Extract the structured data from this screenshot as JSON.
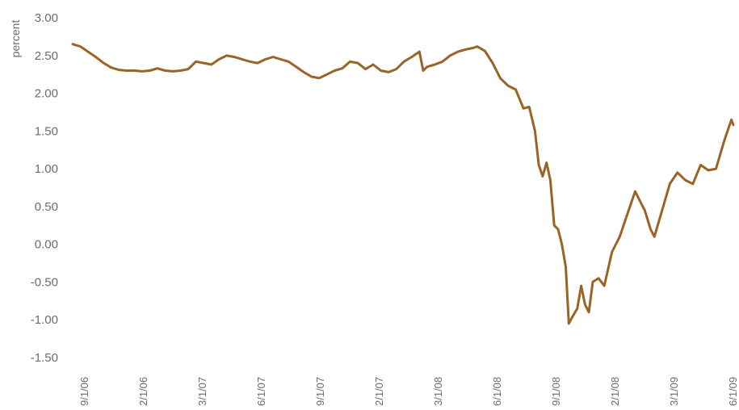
{
  "chart_data": {
    "type": "line",
    "title": "",
    "xlabel": "",
    "ylabel": "percent",
    "ylim": [
      -1.5,
      3.0
    ],
    "yticks": [
      "3.00",
      "2.50",
      "2.00",
      "1.50",
      "1.00",
      "0.50",
      "0.00",
      "-0.50",
      "-1.00",
      "-1.50"
    ],
    "xticks": [
      "9/1/06",
      "2/1/06",
      "3/1/07",
      "6/1/07",
      "9/1/07",
      "2/1/07",
      "3/1/08",
      "6/1/08",
      "9/1/08",
      "2/1/08",
      "3/1/09",
      "6/1/09"
    ],
    "grid": false,
    "legend": "none",
    "series": [
      {
        "color": "#9a6426",
        "points": [
          [
            0.0,
            2.65
          ],
          [
            0.2,
            2.62
          ],
          [
            0.4,
            2.55
          ],
          [
            0.6,
            2.48
          ],
          [
            0.8,
            2.4
          ],
          [
            1.0,
            2.34
          ],
          [
            1.2,
            2.31
          ],
          [
            1.4,
            2.3
          ],
          [
            1.6,
            2.3
          ],
          [
            1.8,
            2.29
          ],
          [
            2.0,
            2.3
          ],
          [
            2.2,
            2.33
          ],
          [
            2.4,
            2.3
          ],
          [
            2.6,
            2.29
          ],
          [
            2.8,
            2.3
          ],
          [
            3.0,
            2.32
          ],
          [
            3.2,
            2.42
          ],
          [
            3.4,
            2.4
          ],
          [
            3.6,
            2.38
          ],
          [
            3.8,
            2.45
          ],
          [
            4.0,
            2.5
          ],
          [
            4.2,
            2.48
          ],
          [
            4.4,
            2.45
          ],
          [
            4.6,
            2.42
          ],
          [
            4.8,
            2.4
          ],
          [
            5.0,
            2.45
          ],
          [
            5.2,
            2.48
          ],
          [
            5.4,
            2.45
          ],
          [
            5.6,
            2.42
          ],
          [
            5.8,
            2.35
          ],
          [
            6.0,
            2.28
          ],
          [
            6.2,
            2.22
          ],
          [
            6.4,
            2.2
          ],
          [
            6.6,
            2.25
          ],
          [
            6.8,
            2.3
          ],
          [
            7.0,
            2.33
          ],
          [
            7.2,
            2.42
          ],
          [
            7.4,
            2.4
          ],
          [
            7.6,
            2.32
          ],
          [
            7.8,
            2.38
          ],
          [
            8.0,
            2.3
          ],
          [
            8.2,
            2.28
          ],
          [
            8.4,
            2.32
          ],
          [
            8.6,
            2.42
          ],
          [
            8.8,
            2.48
          ],
          [
            9.0,
            2.55
          ],
          [
            9.1,
            2.3
          ],
          [
            9.2,
            2.35
          ],
          [
            9.4,
            2.38
          ],
          [
            9.6,
            2.42
          ],
          [
            9.8,
            2.5
          ],
          [
            10.0,
            2.55
          ],
          [
            10.2,
            2.58
          ],
          [
            10.4,
            2.6
          ],
          [
            10.5,
            2.62
          ],
          [
            10.7,
            2.56
          ],
          [
            10.9,
            2.4
          ],
          [
            11.1,
            2.2
          ],
          [
            11.3,
            2.1
          ],
          [
            11.5,
            2.05
          ],
          [
            11.7,
            1.8
          ],
          [
            11.85,
            1.82
          ],
          [
            12.0,
            1.5
          ],
          [
            12.1,
            1.05
          ],
          [
            12.2,
            0.9
          ],
          [
            12.3,
            1.08
          ],
          [
            12.4,
            0.85
          ],
          [
            12.5,
            0.25
          ],
          [
            12.6,
            0.2
          ],
          [
            12.7,
            0.0
          ],
          [
            12.8,
            -0.3
          ],
          [
            12.88,
            -1.05
          ],
          [
            12.95,
            -0.98
          ],
          [
            13.1,
            -0.85
          ],
          [
            13.2,
            -0.55
          ],
          [
            13.3,
            -0.8
          ],
          [
            13.4,
            -0.9
          ],
          [
            13.5,
            -0.5
          ],
          [
            13.65,
            -0.45
          ],
          [
            13.8,
            -0.55
          ],
          [
            14.0,
            -0.1
          ],
          [
            14.2,
            0.1
          ],
          [
            14.4,
            0.4
          ],
          [
            14.6,
            0.7
          ],
          [
            14.7,
            0.6
          ],
          [
            14.85,
            0.45
          ],
          [
            15.0,
            0.2
          ],
          [
            15.1,
            0.1
          ],
          [
            15.3,
            0.45
          ],
          [
            15.5,
            0.8
          ],
          [
            15.7,
            0.95
          ],
          [
            15.9,
            0.85
          ],
          [
            16.1,
            0.8
          ],
          [
            16.3,
            1.05
          ],
          [
            16.5,
            0.98
          ],
          [
            16.7,
            1.0
          ],
          [
            16.9,
            1.35
          ],
          [
            17.0,
            1.5
          ],
          [
            17.1,
            1.65
          ],
          [
            17.15,
            1.58
          ]
        ]
      }
    ]
  }
}
